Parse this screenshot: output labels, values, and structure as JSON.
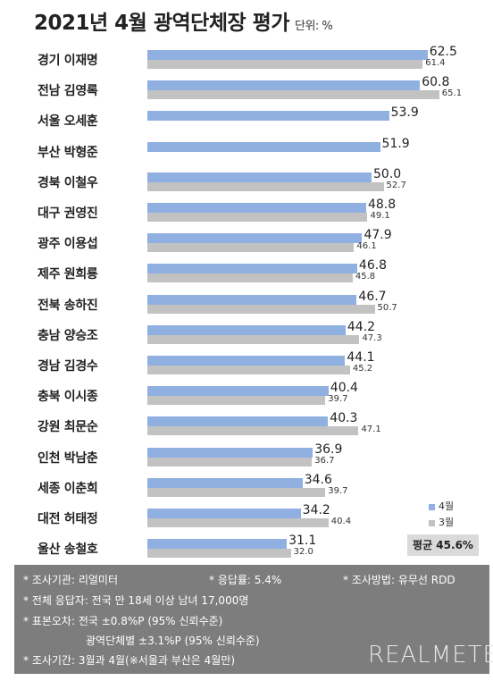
{
  "title": "2021년 4월 광역단체장 평가",
  "unit_label": "단위: %",
  "legend": [
    {
      "name": "4월",
      "color": "#8fb0e0"
    },
    {
      "name": "3월",
      "color": "#c2c2c2"
    }
  ],
  "average_label": "평균 45.6%",
  "chart_data": {
    "type": "bar",
    "orientation": "horizontal",
    "categories": [
      "경기 이재명",
      "전남 김영록",
      "서울 오세훈",
      "부산 박형준",
      "경북 이철우",
      "대구 권영진",
      "광주 이용섭",
      "제주 원희룡",
      "전북 송하진",
      "충남 양승조",
      "경남 김경수",
      "충북 이시종",
      "강원 최문순",
      "인천 박남춘",
      "세종 이춘희",
      "대전 허태정",
      "울산 송철호"
    ],
    "series": [
      {
        "name": "4월",
        "values": [
          62.5,
          60.8,
          53.9,
          51.9,
          50.0,
          48.8,
          47.9,
          46.8,
          46.7,
          44.2,
          44.1,
          40.4,
          40.3,
          36.9,
          34.6,
          34.2,
          31.1
        ]
      },
      {
        "name": "3월",
        "values": [
          61.4,
          65.1,
          null,
          null,
          52.7,
          49.1,
          46.1,
          45.8,
          50.7,
          47.3,
          45.2,
          39.7,
          47.1,
          36.7,
          39.7,
          40.4,
          32.0
        ]
      }
    ],
    "title": "2021년 4월 광역단체장 평가"
  },
  "footer": {
    "agency": "* 조사기관: 리얼미터",
    "response_rate": "* 응답률: 5.4%",
    "method": "* 조사방법: 유무선 RDD",
    "respondents": "* 전체 응답자: 전국 만 18세 이상 남녀 17,000명",
    "error_national": "* 표본오차: 전국 ±0.8%P (95% 신뢰수준)",
    "error_regional": "광역단체별 ±3.1%P (95% 신뢰수준)",
    "period": "* 조사기간: 3월과 4월(※서울과 부산은 4월만)",
    "brand": "REALMETER"
  }
}
